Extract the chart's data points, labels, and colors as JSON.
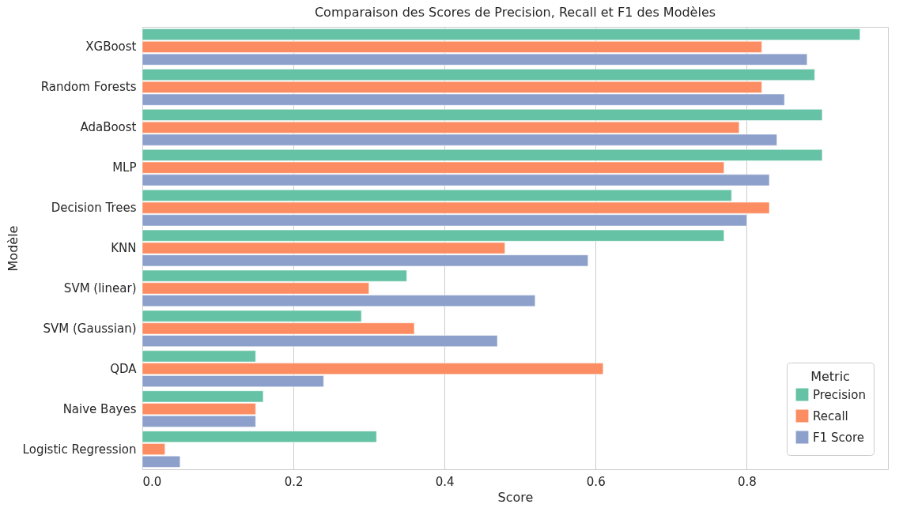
{
  "chart_data": {
    "type": "bar",
    "orientation": "horizontal",
    "title": "Comparaison des Scores de Precision, Recall et F1 des Modèles",
    "xlabel": "Score",
    "ylabel": "Modèle",
    "legend_title": "Metric",
    "legend": "bottom right",
    "grid": "x",
    "categories": [
      "XGBoost",
      "Random Forests",
      "AdaBoost",
      "MLP",
      "Decision Trees",
      "KNN",
      "SVM (linear)",
      "SVM (Gaussian)",
      "QDA",
      "Naive Bayes",
      "Logistic Regression"
    ],
    "xlim": [
      0,
      0.987
    ],
    "xticks": [
      {
        "value": 0,
        "label": "0.0"
      },
      {
        "value": 0.2,
        "label": "0.2"
      },
      {
        "value": 0.4,
        "label": "0.4"
      },
      {
        "value": 0.6,
        "label": "0.6"
      },
      {
        "value": 0.8,
        "label": "0.8"
      }
    ],
    "series": [
      {
        "name": "Precision",
        "color": "#66c2a5",
        "values": [
          0.95,
          0.89,
          0.9,
          0.9,
          0.78,
          0.77,
          0.35,
          0.29,
          0.15,
          0.16,
          0.31
        ]
      },
      {
        "name": "Recall",
        "color": "#fc8d62",
        "values": [
          0.82,
          0.82,
          0.79,
          0.77,
          0.83,
          0.48,
          0.3,
          0.36,
          0.61,
          0.15,
          0.03
        ]
      },
      {
        "name": "F1 Score",
        "color": "#8da0cb",
        "values": [
          0.88,
          0.85,
          0.84,
          0.83,
          0.8,
          0.59,
          0.52,
          0.47,
          0.24,
          0.15,
          0.05
        ]
      }
    ]
  }
}
